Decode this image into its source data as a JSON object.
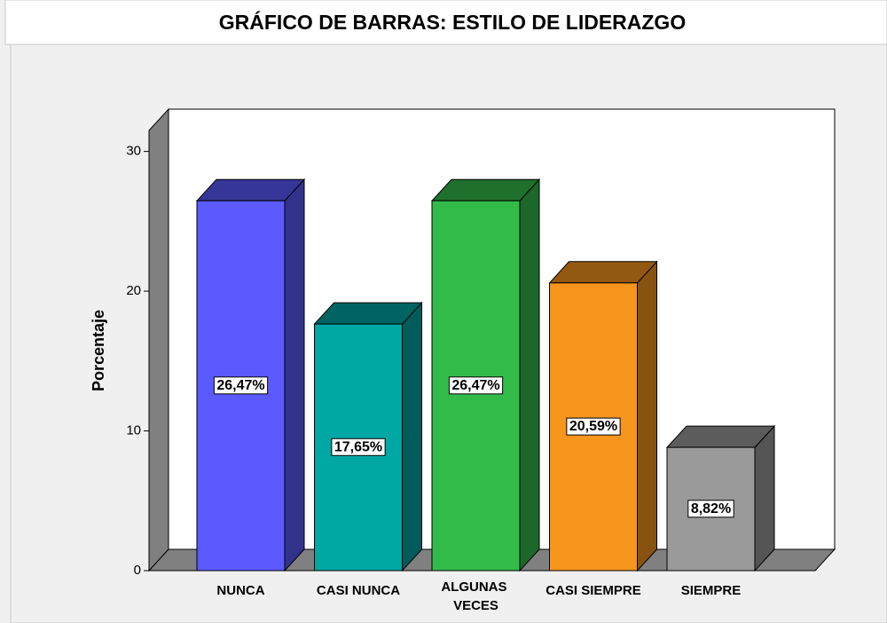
{
  "chart_data": {
    "type": "bar3d",
    "title": "GRÁFICO DE BARRAS: ESTILO DE LIDERAZGO",
    "y_label": "Porcentaje",
    "categories": [
      "NUNCA",
      "CASI NUNCA",
      "ALGUNAS VECES",
      "CASI SIEMPRE",
      "SIEMPRE"
    ],
    "values": [
      26.47,
      17.65,
      26.47,
      20.59,
      8.82
    ],
    "value_labels": [
      "26,47%",
      "17,65%",
      "26,47%",
      "20,59%",
      "8,82%"
    ],
    "colors": [
      "#5a5aff",
      "#00a8a4",
      "#33bb4a",
      "#f7951d",
      "#9a9a9a"
    ],
    "ylim": [
      0,
      31.5
    ],
    "yticks": [
      0,
      10,
      20,
      30
    ]
  }
}
